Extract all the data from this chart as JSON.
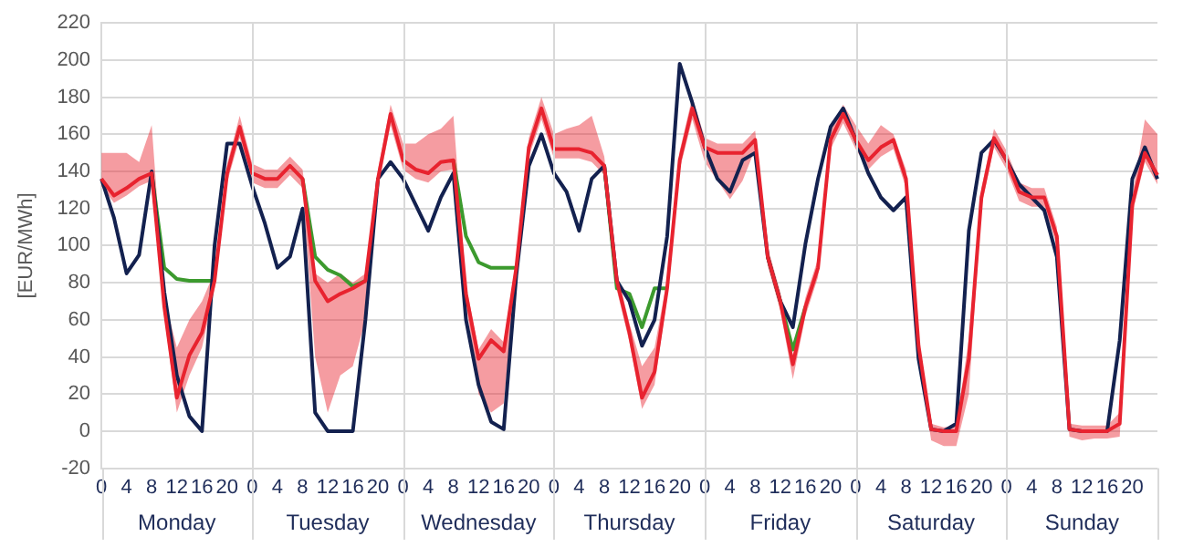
{
  "chart_data": {
    "type": "line",
    "ylabel": "[EUR/MWh]",
    "ylim": [
      -20,
      220
    ],
    "yticks": [
      -20,
      0,
      20,
      40,
      60,
      80,
      100,
      120,
      140,
      160,
      180,
      200,
      220
    ],
    "categories": [
      "0",
      null,
      "4",
      null,
      "8",
      null,
      "12",
      null,
      "16",
      null,
      "20",
      null,
      "0",
      null,
      "4",
      null,
      "8",
      null,
      "12",
      null,
      "16",
      null,
      "20",
      null,
      "0",
      null,
      "4",
      null,
      "8",
      null,
      "12",
      null,
      "16",
      null,
      "20",
      null,
      "0",
      null,
      "4",
      null,
      "8",
      null,
      "12",
      null,
      "16",
      null,
      "20",
      null,
      "0",
      null,
      "4",
      null,
      "8",
      null,
      "12",
      null,
      "16",
      null,
      "20",
      null,
      "0",
      null,
      "4",
      null,
      "8",
      null,
      "12",
      null,
      "16",
      null,
      "20",
      null,
      "0",
      null,
      "4",
      null,
      "8",
      null,
      "12",
      null,
      "16",
      null,
      "20",
      null,
      null
    ],
    "series": [
      {
        "color": "#3c9a2e",
        "values": [
          null,
          null,
          null,
          null,
          139,
          88,
          82,
          81,
          81,
          81,
          null,
          null,
          null,
          null,
          null,
          null,
          136,
          94,
          87,
          84,
          78,
          81,
          null,
          null,
          null,
          null,
          null,
          null,
          146,
          105,
          91,
          88,
          88,
          88,
          null,
          null,
          null,
          null,
          null,
          null,
          143,
          77,
          74,
          56,
          77,
          77,
          null,
          null,
          null,
          null,
          null,
          null,
          null,
          94,
          70,
          44,
          67,
          null,
          null,
          null,
          null,
          null,
          null,
          null,
          null,
          null,
          null,
          null,
          null,
          null,
          null,
          null,
          null,
          null,
          null,
          null,
          null,
          null,
          null,
          null,
          null,
          null,
          null,
          null,
          null
        ]
      },
      {
        "color": "#13214f",
        "values": [
          136,
          115,
          85,
          95,
          140,
          75,
          30,
          8,
          0,
          100,
          155,
          155,
          132,
          112,
          88,
          94,
          120,
          10,
          0,
          0,
          0,
          60,
          136,
          145,
          136,
          122,
          108,
          126,
          139,
          60,
          25,
          5,
          1,
          84,
          143,
          160,
          139,
          129,
          108,
          136,
          143,
          81,
          70,
          46,
          60,
          105,
          198,
          177,
          153,
          136,
          129,
          146,
          150,
          94,
          70,
          56,
          101,
          136,
          164,
          174,
          157,
          139,
          126,
          119,
          126,
          39,
          1,
          0,
          4,
          108,
          150,
          157,
          146,
          133,
          126,
          119,
          94,
          1,
          0,
          0,
          0,
          49,
          136,
          153,
          136
        ]
      },
      {
        "color": "#e8232f",
        "values": [
          136,
          127,
          131,
          136,
          139,
          67,
          18,
          41,
          53,
          81,
          139,
          164,
          139,
          136,
          136,
          143,
          136,
          81,
          70,
          74,
          77,
          81,
          136,
          171,
          146,
          141,
          139,
          145,
          146,
          74,
          39,
          49,
          43,
          88,
          153,
          174,
          152,
          152,
          152,
          150,
          143,
          81,
          53,
          18,
          32,
          77,
          146,
          174,
          153,
          150,
          150,
          150,
          157,
          94,
          70,
          36,
          67,
          88,
          157,
          171,
          157,
          146,
          153,
          157,
          136,
          46,
          1,
          0,
          0,
          39,
          126,
          158,
          146,
          129,
          126,
          126,
          105,
          1,
          0,
          0,
          0,
          4,
          122,
          150,
          138
        ],
        "lower": [
          132,
          123,
          127,
          132,
          135,
          62,
          10,
          30,
          45,
          76,
          134,
          158,
          134,
          131,
          131,
          138,
          131,
          40,
          10,
          30,
          35,
          60,
          131,
          165,
          141,
          136,
          134,
          140,
          141,
          69,
          20,
          10,
          15,
          83,
          148,
          168,
          147,
          147,
          147,
          145,
          138,
          76,
          48,
          12,
          25,
          72,
          141,
          168,
          145,
          135,
          125,
          135,
          152,
          89,
          65,
          28,
          62,
          83,
          152,
          166,
          152,
          141,
          148,
          152,
          131,
          41,
          -5,
          -8,
          -8,
          20,
          121,
          153,
          141,
          124,
          121,
          121,
          100,
          -3,
          -5,
          -4,
          -4,
          -3,
          117,
          145,
          133
        ],
        "upper": [
          150,
          150,
          150,
          145,
          165,
          72,
          45,
          60,
          70,
          86,
          144,
          170,
          144,
          141,
          141,
          148,
          141,
          85,
          80,
          85,
          80,
          85,
          141,
          176,
          155,
          155,
          160,
          163,
          170,
          79,
          44,
          55,
          48,
          93,
          158,
          180,
          160,
          163,
          165,
          170,
          148,
          86,
          58,
          35,
          45,
          82,
          151,
          180,
          158,
          155,
          155,
          155,
          162,
          99,
          75,
          41,
          72,
          93,
          162,
          176,
          165,
          155,
          165,
          160,
          141,
          51,
          4,
          2,
          3,
          50,
          131,
          163,
          151,
          134,
          131,
          131,
          110,
          4,
          3,
          3,
          3,
          10,
          127,
          168,
          160
        ]
      }
    ],
    "annotations": [
      "Monday",
      "Tuesday",
      "Wednesday",
      "Thursday",
      "Friday",
      "Saturday",
      "Sunday"
    ],
    "grid": "y",
    "legend": false,
    "marker": "none"
  }
}
